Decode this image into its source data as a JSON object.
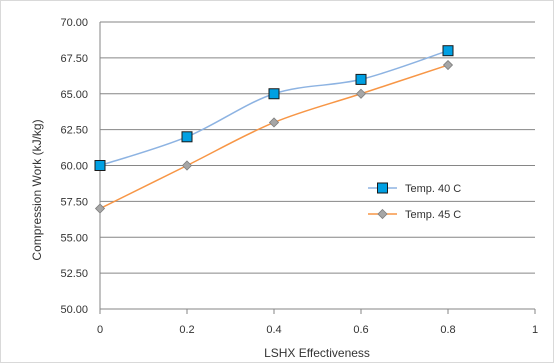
{
  "chart_data": {
    "type": "line",
    "title": "",
    "xlabel": "LSHX Effectiveness",
    "ylabel": "Compression Work (kJ/kg)",
    "xlim": [
      0,
      1
    ],
    "ylim": [
      50,
      70
    ],
    "x_ticks": [
      0,
      0.2,
      0.4,
      0.6,
      0.8,
      1
    ],
    "x_tick_labels": [
      "0",
      "0.2",
      "0.4",
      "0.6",
      "0.8",
      "1"
    ],
    "y_ticks": [
      50,
      52.5,
      55,
      57.5,
      60,
      62.5,
      65,
      67.5,
      70
    ],
    "y_tick_labels": [
      "50.00",
      "52.50",
      "55.00",
      "57.50",
      "60.00",
      "62.50",
      "65.00",
      "67.50",
      "70.00"
    ],
    "grid": "horizontal",
    "legend_position": "right",
    "series": [
      {
        "name": "Temp. 40 C",
        "color": "#8db3e2",
        "marker": "square",
        "marker_fill": "#00a0e3",
        "x": [
          0,
          0.2,
          0.4,
          0.6,
          0.8
        ],
        "y": [
          60,
          62,
          65,
          66,
          68
        ]
      },
      {
        "name": "Temp. 45 C",
        "color": "#f79646",
        "marker": "diamond",
        "marker_fill": "#a6a6a6",
        "x": [
          0,
          0.2,
          0.4,
          0.6,
          0.8
        ],
        "y": [
          57,
          60,
          63,
          65,
          67
        ]
      }
    ]
  }
}
